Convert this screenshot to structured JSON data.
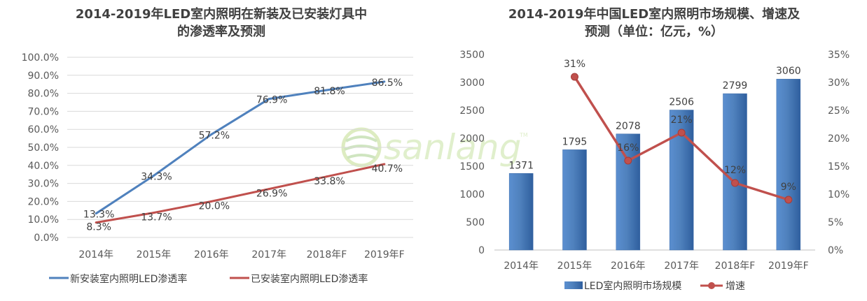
{
  "watermark": {
    "text": "sanlang",
    "tm": "TM"
  },
  "chart_data": [
    {
      "type": "line",
      "title_lines": [
        "2014-2019年LED室内照明在新装及已安装灯具中",
        "的渗透率及预测"
      ],
      "categories": [
        "2014年",
        "2015年",
        "2016年",
        "2017年",
        "2018年F",
        "2019年F"
      ],
      "y_ticks": [
        "0.0%",
        "10.0%",
        "20.0%",
        "30.0%",
        "40.0%",
        "50.0%",
        "60.0%",
        "70.0%",
        "80.0%",
        "90.0%",
        "100.0%"
      ],
      "ylim": [
        0,
        100
      ],
      "grid": true,
      "legend_position": "bottom",
      "series": [
        {
          "name": "新安装室内照明LED渗透率",
          "color": "#4f81bd",
          "values": [
            13.3,
            34.3,
            57.2,
            76.9,
            81.8,
            86.5
          ],
          "labels": [
            "13.3%",
            "34.3%",
            "57.2%",
            "76.9%",
            "81.8%",
            "86.5%"
          ]
        },
        {
          "name": "已安装室内照明LED渗透率",
          "color": "#c0504d",
          "values": [
            8.3,
            13.7,
            20.0,
            26.9,
            33.8,
            40.7
          ],
          "labels": [
            "8.3%",
            "13.7%",
            "20.0%",
            "26.9%",
            "33.8%",
            "40.7%"
          ]
        }
      ]
    },
    {
      "type": "bar",
      "title_lines": [
        "2014-2019年中国LED室内照明市场规模、增速及",
        "预测（单位：亿元，%）"
      ],
      "categories": [
        "2014年",
        "2015年",
        "2016年",
        "2017年",
        "2018年F",
        "2019年F"
      ],
      "ylim": [
        0,
        3500
      ],
      "y_ticks": [
        "0",
        "500",
        "1000",
        "1500",
        "2000",
        "2500",
        "3000",
        "3500"
      ],
      "y2lim": [
        0,
        35
      ],
      "y2_ticks": [
        "0%",
        "5%",
        "10%",
        "15%",
        "20%",
        "25%",
        "30%",
        "35%"
      ],
      "grid": false,
      "legend_position": "bottom",
      "bars": {
        "name": "LED室内照明市场规模",
        "color": "#4f81bd",
        "values": [
          1371,
          1795,
          2078,
          2506,
          2799,
          3060
        ],
        "labels": [
          "1371",
          "1795",
          "2078",
          "2506",
          "2799",
          "3060"
        ]
      },
      "line": {
        "name": "增速",
        "color": "#c0504d",
        "axis": "right",
        "categories": [
          "2015年",
          "2016年",
          "2017年",
          "2018年F",
          "2019年F"
        ],
        "values": [
          31,
          16,
          21,
          12,
          9
        ],
        "labels": [
          "31%",
          "16%",
          "21%",
          "12%",
          "9%"
        ]
      }
    }
  ]
}
